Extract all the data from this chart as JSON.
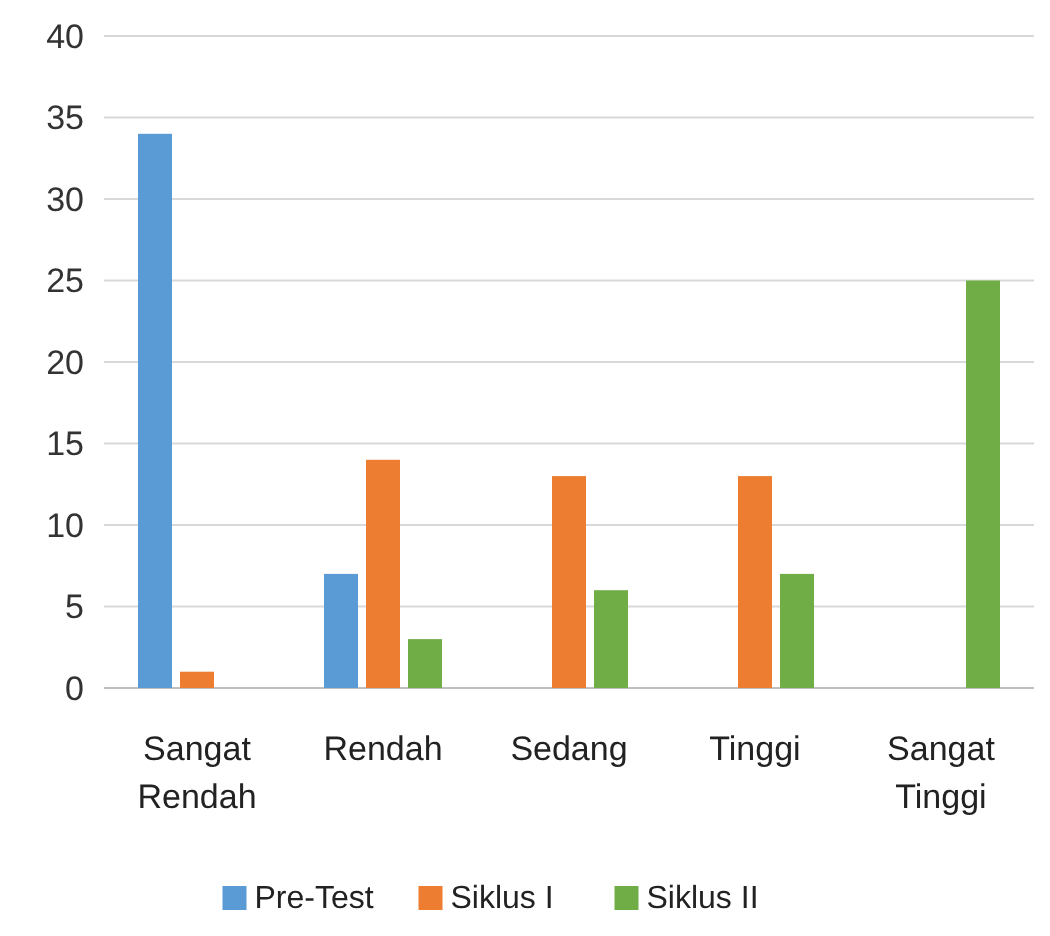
{
  "chart_data": {
    "type": "bar",
    "categories": [
      "Sangat Rendah",
      "Rendah",
      "Sedang",
      "Tinggi",
      "Sangat Tinggi"
    ],
    "series": [
      {
        "name": "Pre-Test",
        "color": "#5b9bd5",
        "values": [
          34,
          7,
          0,
          0,
          0
        ]
      },
      {
        "name": "Siklus I",
        "color": "#ed7d31",
        "values": [
          1,
          14,
          13,
          13,
          0
        ]
      },
      {
        "name": "Siklus II",
        "color": "#70ad47",
        "values": [
          0,
          3,
          6,
          7,
          25
        ]
      }
    ],
    "ylim": [
      0,
      40
    ],
    "yticks": [
      0,
      5,
      10,
      15,
      20,
      25,
      30,
      35,
      40
    ],
    "grid": "y",
    "legend": "bottom"
  }
}
